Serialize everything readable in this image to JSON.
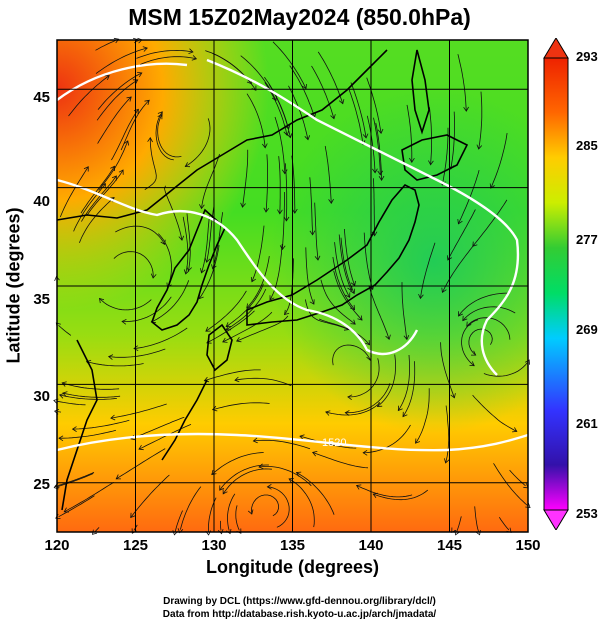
{
  "title": "MSM 15Z02May2024 (850.0hPa)",
  "axes": {
    "xlabel": "Longitude (degrees)",
    "ylabel": "Latitude  (degrees)",
    "xticks": [
      "120",
      "125",
      "130",
      "135",
      "140",
      "145",
      "150"
    ],
    "yticks": [
      "45",
      "40",
      "35",
      "30",
      "25"
    ],
    "xlim": [
      120,
      150
    ],
    "ylim": [
      22.5,
      47.5
    ]
  },
  "colorbar": {
    "labels": [
      "293",
      "285",
      "277",
      "269",
      "261",
      "253"
    ],
    "range": [
      253,
      293
    ],
    "colors": [
      "#ff00ff",
      "#3333ff",
      "#00ccff",
      "#00dd66",
      "#33cc33",
      "#ccee00",
      "#ffcc00",
      "#ff6600",
      "#ee2200"
    ]
  },
  "credits": {
    "line1": "Drawing by DCL (https://www.gfd-dennou.org/library/dcl/)",
    "line2": "Data from http://database.rish.kyoto-u.ac.jp/arch/jmadata/"
  },
  "contour_labels": [
    "1520"
  ]
}
